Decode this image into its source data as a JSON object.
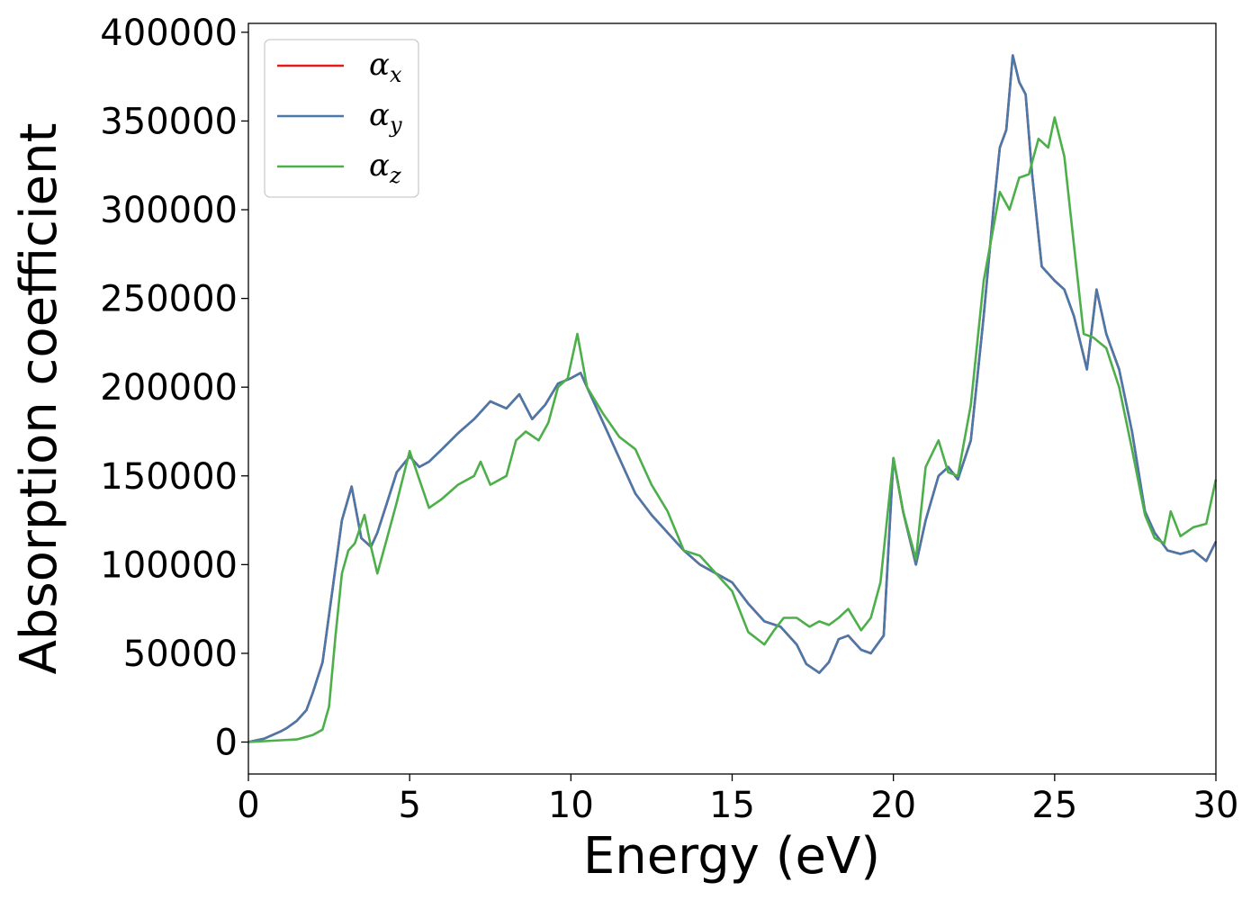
{
  "chart_data": {
    "type": "line",
    "xlabel": "Energy (eV)",
    "ylabel": "Absorption coefficient",
    "xlim": [
      0,
      30
    ],
    "ylim": [
      -18000,
      405000
    ],
    "xticks": [
      0,
      5,
      10,
      15,
      20,
      25,
      30
    ],
    "yticks": [
      0,
      50000,
      100000,
      150000,
      200000,
      250000,
      300000,
      350000,
      400000
    ],
    "grid": false,
    "legend_position": "top-left",
    "series": [
      {
        "name": "α",
        "subscript": "x",
        "color": "#e41a1c",
        "x": [
          0,
          0.5,
          1.0,
          1.2,
          1.5,
          1.8,
          2.0,
          2.3,
          2.6,
          2.9,
          3.2,
          3.5,
          3.8,
          4.0,
          4.3,
          4.6,
          5.0,
          5.3,
          5.6,
          6.0,
          6.5,
          7.0,
          7.5,
          8.0,
          8.4,
          8.8,
          9.2,
          9.6,
          10.0,
          10.3,
          10.6,
          11.0,
          11.5,
          12.0,
          12.5,
          13.0,
          13.5,
          14.0,
          14.5,
          15.0,
          15.5,
          16.0,
          16.5,
          17.0,
          17.3,
          17.7,
          18.0,
          18.3,
          18.6,
          19.0,
          19.3,
          19.7,
          20.0,
          20.3,
          20.7,
          21.0,
          21.4,
          21.7,
          22.0,
          22.4,
          22.8,
          23.1,
          23.3,
          23.5,
          23.7,
          23.9,
          24.1,
          24.3,
          24.6,
          25.0,
          25.3,
          25.6,
          26.0,
          26.3,
          26.6,
          27.0,
          27.4,
          27.8,
          28.1,
          28.5,
          28.9,
          29.3,
          29.7,
          30.0
        ],
        "values": [
          0,
          2000,
          6000,
          8000,
          12000,
          18000,
          28000,
          45000,
          85000,
          125000,
          144000,
          115000,
          110000,
          118000,
          135000,
          152000,
          161000,
          155000,
          158000,
          165000,
          174000,
          182000,
          192000,
          188000,
          196000,
          182000,
          190000,
          202000,
          205000,
          208000,
          196000,
          180000,
          160000,
          140000,
          128000,
          118000,
          108000,
          100000,
          95000,
          90000,
          78000,
          68000,
          65000,
          55000,
          44000,
          39000,
          45000,
          58000,
          60000,
          52000,
          50000,
          60000,
          160000,
          130000,
          100000,
          125000,
          150000,
          155000,
          148000,
          170000,
          240000,
          300000,
          335000,
          345000,
          387000,
          372000,
          365000,
          320000,
          268000,
          260000,
          255000,
          240000,
          210000,
          255000,
          230000,
          210000,
          175000,
          130000,
          118000,
          108000,
          106000,
          108000,
          102000,
          113000
        ]
      },
      {
        "name": "α",
        "subscript": "y",
        "color": "#4a79a9",
        "x": [
          0,
          0.5,
          1.0,
          1.2,
          1.5,
          1.8,
          2.0,
          2.3,
          2.6,
          2.9,
          3.2,
          3.5,
          3.8,
          4.0,
          4.3,
          4.6,
          5.0,
          5.3,
          5.6,
          6.0,
          6.5,
          7.0,
          7.5,
          8.0,
          8.4,
          8.8,
          9.2,
          9.6,
          10.0,
          10.3,
          10.6,
          11.0,
          11.5,
          12.0,
          12.5,
          13.0,
          13.5,
          14.0,
          14.5,
          15.0,
          15.5,
          16.0,
          16.5,
          17.0,
          17.3,
          17.7,
          18.0,
          18.3,
          18.6,
          19.0,
          19.3,
          19.7,
          20.0,
          20.3,
          20.7,
          21.0,
          21.4,
          21.7,
          22.0,
          22.4,
          22.8,
          23.1,
          23.3,
          23.5,
          23.7,
          23.9,
          24.1,
          24.3,
          24.6,
          25.0,
          25.3,
          25.6,
          26.0,
          26.3,
          26.6,
          27.0,
          27.4,
          27.8,
          28.1,
          28.5,
          28.9,
          29.3,
          29.7,
          30.0
        ],
        "values": [
          0,
          2000,
          6000,
          8000,
          12000,
          18000,
          28000,
          45000,
          85000,
          125000,
          144000,
          115000,
          110000,
          118000,
          135000,
          152000,
          161000,
          155000,
          158000,
          165000,
          174000,
          182000,
          192000,
          188000,
          196000,
          182000,
          190000,
          202000,
          205000,
          208000,
          196000,
          180000,
          160000,
          140000,
          128000,
          118000,
          108000,
          100000,
          95000,
          90000,
          78000,
          68000,
          65000,
          55000,
          44000,
          39000,
          45000,
          58000,
          60000,
          52000,
          50000,
          60000,
          160000,
          130000,
          100000,
          125000,
          150000,
          155000,
          148000,
          170000,
          240000,
          300000,
          335000,
          345000,
          387000,
          372000,
          365000,
          320000,
          268000,
          260000,
          255000,
          240000,
          210000,
          255000,
          230000,
          210000,
          175000,
          130000,
          118000,
          108000,
          106000,
          108000,
          102000,
          113000
        ]
      },
      {
        "name": "α",
        "subscript": "z",
        "color": "#4daf4a",
        "x": [
          0,
          0.5,
          1.0,
          1.5,
          2.0,
          2.3,
          2.5,
          2.7,
          2.9,
          3.1,
          3.3,
          3.6,
          3.8,
          4.0,
          4.3,
          4.6,
          5.0,
          5.3,
          5.6,
          6.0,
          6.5,
          7.0,
          7.2,
          7.5,
          8.0,
          8.3,
          8.6,
          9.0,
          9.3,
          9.6,
          9.9,
          10.2,
          10.5,
          11.0,
          11.5,
          12.0,
          12.5,
          13.0,
          13.5,
          14.0,
          14.5,
          15.0,
          15.5,
          16.0,
          16.3,
          16.6,
          17.0,
          17.4,
          17.7,
          18.0,
          18.3,
          18.6,
          19.0,
          19.3,
          19.6,
          20.0,
          20.3,
          20.7,
          21.0,
          21.4,
          21.7,
          22.0,
          22.4,
          22.8,
          23.1,
          23.3,
          23.6,
          23.9,
          24.2,
          24.5,
          24.8,
          25.0,
          25.3,
          25.6,
          25.9,
          26.2,
          26.6,
          27.0,
          27.4,
          27.8,
          28.1,
          28.4,
          28.6,
          28.9,
          29.3,
          29.7,
          30.0
        ],
        "values": [
          0,
          500,
          1000,
          1500,
          4000,
          7000,
          20000,
          60000,
          95000,
          108000,
          112000,
          128000,
          110000,
          95000,
          115000,
          135000,
          164000,
          148000,
          132000,
          137000,
          145000,
          150000,
          158000,
          145000,
          150000,
          170000,
          175000,
          170000,
          180000,
          200000,
          205000,
          230000,
          200000,
          185000,
          172000,
          165000,
          145000,
          130000,
          108000,
          105000,
          95000,
          85000,
          62000,
          55000,
          63000,
          70000,
          70000,
          65000,
          68000,
          66000,
          70000,
          75000,
          63000,
          70000,
          90000,
          160000,
          130000,
          103000,
          155000,
          170000,
          152000,
          150000,
          190000,
          260000,
          290000,
          310000,
          300000,
          318000,
          320000,
          340000,
          335000,
          352000,
          330000,
          280000,
          230000,
          228000,
          222000,
          200000,
          165000,
          128000,
          115000,
          112000,
          130000,
          116000,
          121000,
          123000,
          148000
        ]
      }
    ]
  }
}
